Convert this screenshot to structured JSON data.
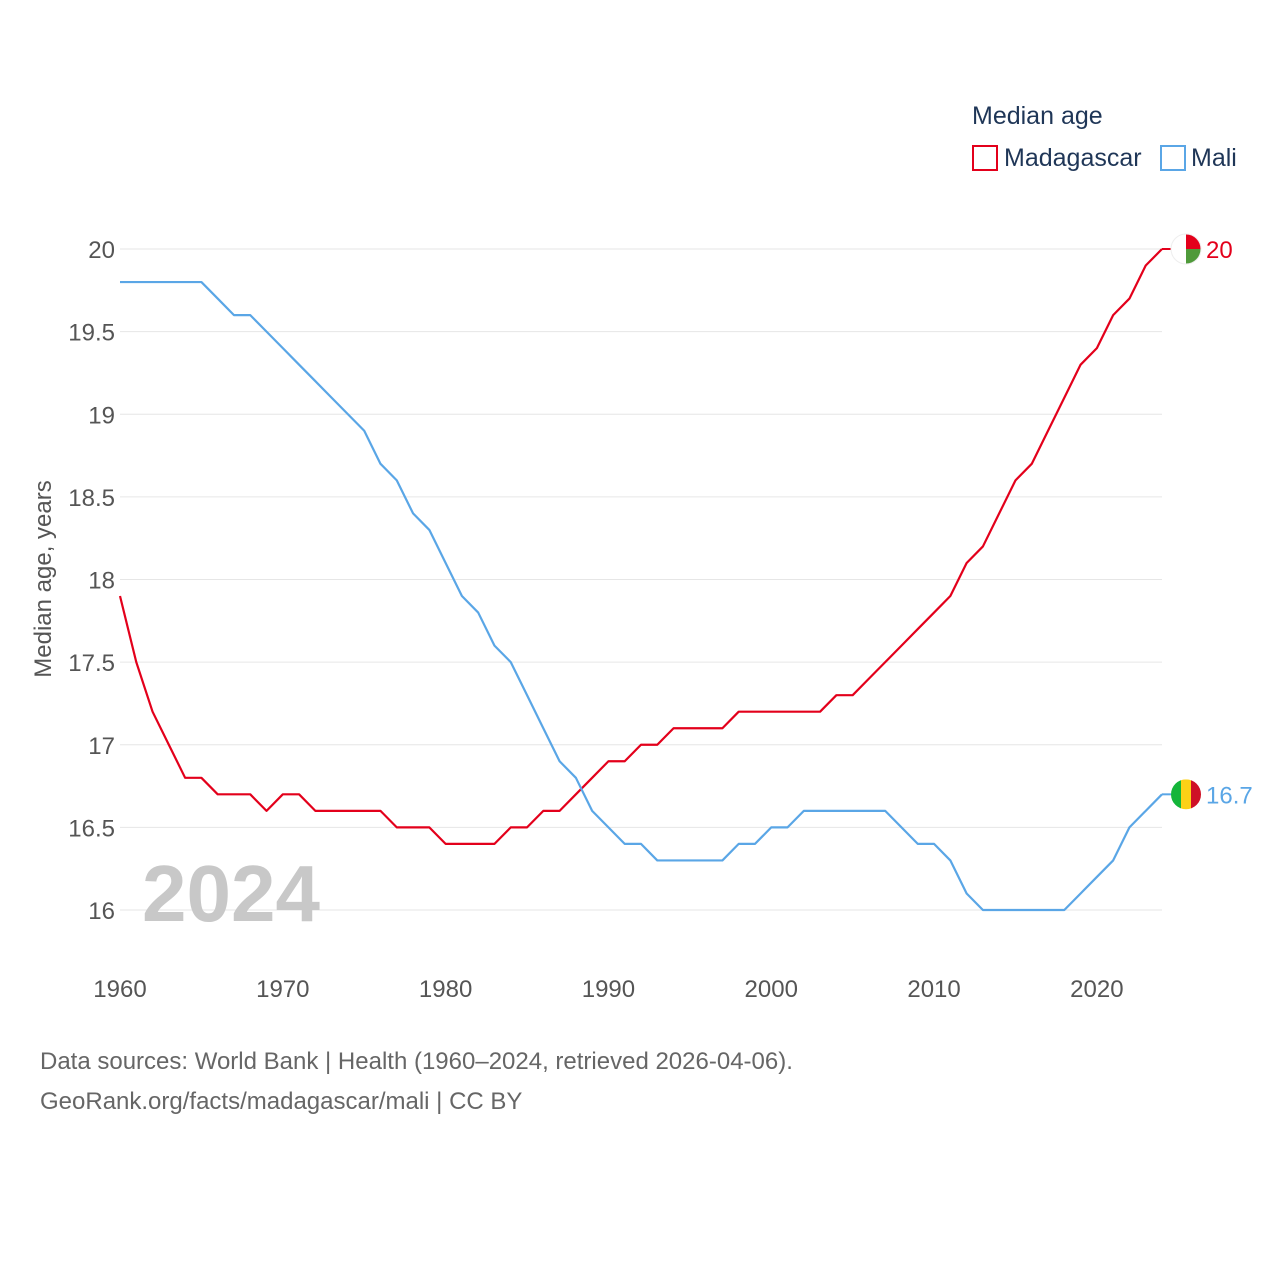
{
  "chart_data": {
    "type": "line",
    "title": "Median age",
    "ylabel": "Median age, years",
    "xlabel": "",
    "xlim": [
      1960,
      2024
    ],
    "ylim": [
      16,
      20
    ],
    "x_ticks": [
      "1960",
      "1970",
      "1980",
      "1990",
      "2000",
      "2010",
      "2020"
    ],
    "y_ticks": [
      "16",
      "16.5",
      "17",
      "17.5",
      "18",
      "18.5",
      "19",
      "19.5",
      "20"
    ],
    "grid": true,
    "legend_position": "top-right",
    "watermark_year": "2024",
    "x": [
      1960,
      1961,
      1962,
      1963,
      1964,
      1965,
      1966,
      1967,
      1968,
      1969,
      1970,
      1971,
      1972,
      1973,
      1974,
      1975,
      1976,
      1977,
      1978,
      1979,
      1980,
      1981,
      1982,
      1983,
      1984,
      1985,
      1986,
      1987,
      1988,
      1989,
      1990,
      1991,
      1992,
      1993,
      1994,
      1995,
      1996,
      1997,
      1998,
      1999,
      2000,
      2001,
      2002,
      2003,
      2004,
      2005,
      2006,
      2007,
      2008,
      2009,
      2010,
      2011,
      2012,
      2013,
      2014,
      2015,
      2016,
      2017,
      2018,
      2019,
      2020,
      2021,
      2022,
      2023,
      2024
    ],
    "series": [
      {
        "name": "Madagascar",
        "color": "#e3001b",
        "end_label": "20",
        "values": [
          17.9,
          17.5,
          17.2,
          17.0,
          16.8,
          16.8,
          16.7,
          16.7,
          16.7,
          16.6,
          16.7,
          16.7,
          16.6,
          16.6,
          16.6,
          16.6,
          16.6,
          16.5,
          16.5,
          16.5,
          16.4,
          16.4,
          16.4,
          16.4,
          16.5,
          16.5,
          16.6,
          16.6,
          16.7,
          16.8,
          16.9,
          16.9,
          17.0,
          17.0,
          17.1,
          17.1,
          17.1,
          17.1,
          17.2,
          17.2,
          17.2,
          17.2,
          17.2,
          17.2,
          17.3,
          17.3,
          17.4,
          17.5,
          17.6,
          17.7,
          17.8,
          17.9,
          18.1,
          18.2,
          18.4,
          18.6,
          18.7,
          18.9,
          19.1,
          19.3,
          19.4,
          19.6,
          19.7,
          19.9,
          20.0
        ]
      },
      {
        "name": "Mali",
        "color": "#5aa6e6",
        "end_label": "16.7",
        "values": [
          19.8,
          19.8,
          19.8,
          19.8,
          19.8,
          19.8,
          19.7,
          19.6,
          19.6,
          19.5,
          19.4,
          19.3,
          19.2,
          19.1,
          19.0,
          18.9,
          18.7,
          18.6,
          18.4,
          18.3,
          18.1,
          17.9,
          17.8,
          17.6,
          17.5,
          17.3,
          17.1,
          16.9,
          16.8,
          16.6,
          16.5,
          16.4,
          16.4,
          16.3,
          16.3,
          16.3,
          16.3,
          16.3,
          16.4,
          16.4,
          16.5,
          16.5,
          16.6,
          16.6,
          16.6,
          16.6,
          16.6,
          16.6,
          16.5,
          16.4,
          16.4,
          16.3,
          16.1,
          16.0,
          16.0,
          16.0,
          16.0,
          16.0,
          16.0,
          16.1,
          16.2,
          16.3,
          16.5,
          16.6,
          16.7
        ]
      }
    ]
  },
  "flags": {
    "madagascar": {
      "white": "#ffffff",
      "red": "#e3001b",
      "green": "#4f9a3a"
    },
    "mali": {
      "green": "#14b53a",
      "yellow": "#fcd116",
      "red": "#ce1126"
    }
  },
  "source": {
    "line1": "Data sources: World Bank | Health (1960–2024, retrieved 2026-04-06).",
    "line2": "GeoRank.org/facts/madagascar/mali | CC BY"
  }
}
